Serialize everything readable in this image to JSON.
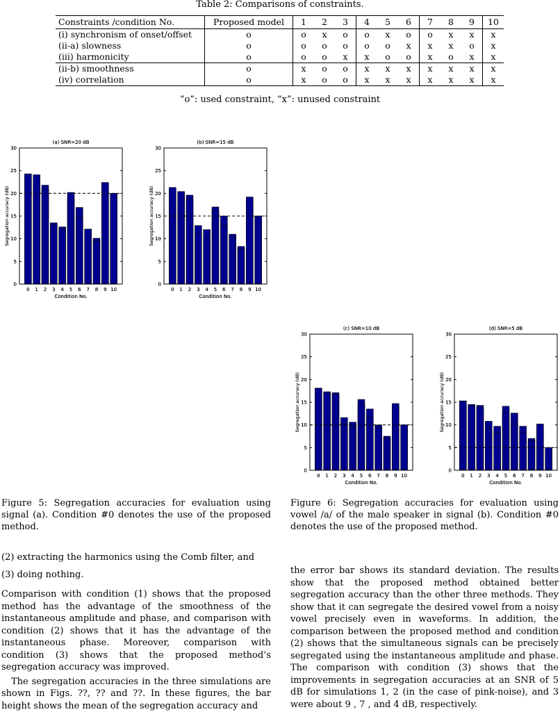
{
  "table": {
    "title": "Table 2: Comparisons of constraints.",
    "header_label": "Constraints /condition No.",
    "header_proposed": "Proposed model",
    "columns": [
      "1",
      "2",
      "3",
      "4",
      "5",
      "6",
      "7",
      "8",
      "9",
      "10"
    ],
    "rows": [
      {
        "label": "(i) synchronism of onset/offset",
        "proposed": "o",
        "cells": [
          "o",
          "x",
          "o",
          "o",
          "x",
          "o",
          "o",
          "x",
          "x",
          "x"
        ]
      },
      {
        "label": "(ii-a) slowness",
        "proposed": "o",
        "cells": [
          "o",
          "o",
          "o",
          "o",
          "o",
          "x",
          "x",
          "x",
          "o",
          "x"
        ]
      },
      {
        "label": "(iii) harmonicity",
        "proposed": "o",
        "cells": [
          "o",
          "o",
          "x",
          "x",
          "o",
          "o",
          "x",
          "o",
          "x",
          "x"
        ]
      },
      {
        "label": "(ii-b) smoothness",
        "proposed": "o",
        "cells": [
          "x",
          "o",
          "o",
          "x",
          "x",
          "x",
          "x",
          "x",
          "x",
          "x"
        ]
      },
      {
        "label": "(iv) correlation",
        "proposed": "o",
        "cells": [
          "x",
          "o",
          "o",
          "x",
          "x",
          "x",
          "x",
          "x",
          "x",
          "x"
        ]
      }
    ],
    "legend": "“o”: used constraint, “x”: unused constraint"
  },
  "chart_data": [
    {
      "type": "bar",
      "title": "(a) SNR=20 dB",
      "xlabel": "Condition No.",
      "ylabel": "Segregation accuracy (dB)",
      "ylim": [
        0,
        30
      ],
      "categories": [
        "0",
        "1",
        "2",
        "3",
        "4",
        "5",
        "6",
        "7",
        "8",
        "9",
        "10"
      ],
      "values": [
        24.1,
        22.4,
        21.8,
        13.5,
        12.6,
        18.9,
        16.9,
        12.1,
        10.1,
        22.0,
        20.0
      ],
      "reference_line": 20
    },
    {
      "type": "bar",
      "title": "(b) SNR=15 dB",
      "xlabel": "Condition No.",
      "ylabel": "Segregation accuracy (dB)",
      "ylim": [
        0,
        30
      ],
      "categories": [
        "0",
        "1",
        "2",
        "3",
        "4",
        "5",
        "6",
        "7",
        "8",
        "9",
        "10"
      ],
      "values": [
        21.0,
        19.6,
        19.6,
        12.9,
        12.0,
        17.0,
        15.0,
        11.0,
        8.3,
        18.4,
        15.0
      ],
      "reference_line": 15
    },
    {
      "type": "bar",
      "title": "(a) SNR=20 dB",
      "xlabel": "Condition No.",
      "ylabel": "Segregation accuracy (dB)",
      "ylim": [
        0,
        30
      ],
      "categories": [
        "0",
        "1",
        "2",
        "3",
        "4",
        "5",
        "6",
        "7",
        "8",
        "9",
        "10"
      ],
      "values": [
        24.3,
        24.1,
        21.0,
        13.0,
        12.1,
        20.2,
        14.7,
        12.1,
        9.6,
        22.4,
        20.0
      ],
      "reference_line": 20
    },
    {
      "type": "bar",
      "title": "(b) SNR=15 dB",
      "xlabel": "Condition No.",
      "ylabel": "Segregation accuracy (dB)",
      "ylim": [
        0,
        30
      ],
      "categories": [
        "0",
        "1",
        "2",
        "3",
        "4",
        "5",
        "6",
        "7",
        "8",
        "9",
        "10"
      ],
      "values": [
        21.3,
        20.4,
        18.7,
        11.1,
        10.3,
        16.2,
        13.0,
        10.3,
        7.7,
        19.2,
        15.0
      ],
      "reference_line": 15
    },
    {
      "type": "bar",
      "title": "(c) SNR=10 dB",
      "xlabel": "Condition No.",
      "ylabel": "Segregation accuracy (dB)",
      "ylim": [
        0,
        30
      ],
      "categories": [
        "0",
        "1",
        "2",
        "3",
        "4",
        "5",
        "6",
        "7",
        "8",
        "9",
        "10"
      ],
      "values": [
        18.1,
        17.3,
        17.1,
        11.6,
        10.6,
        15.6,
        13.5,
        10.0,
        7.5,
        14.0,
        10.0
      ],
      "reference_line": 10
    },
    {
      "type": "bar",
      "title": "(d) SNR=5 dB",
      "xlabel": "Condition No.",
      "ylabel": "Segregation accuracy (dB)",
      "ylim": [
        0,
        30
      ],
      "categories": [
        "0",
        "1",
        "2",
        "3",
        "4",
        "5",
        "6",
        "7",
        "8",
        "9",
        "10"
      ],
      "values": [
        15.2,
        14.5,
        14.3,
        10.8,
        9.7,
        14.1,
        12.6,
        9.7,
        7.0,
        9.0,
        5.0
      ],
      "reference_line": 5
    },
    {
      "type": "bar",
      "title": "(c) SNR=10 dB",
      "xlabel": "Condition No.",
      "ylabel": "Segregation accuracy (dB)",
      "ylim": [
        0,
        30
      ],
      "categories": [
        "0",
        "1",
        "2",
        "3",
        "4",
        "5",
        "6",
        "7",
        "8",
        "9",
        "10"
      ],
      "values": [
        18.1,
        17.0,
        16.7,
        10.2,
        9.4,
        14.6,
        11.7,
        9.4,
        7.0,
        14.7,
        10.0
      ],
      "reference_line": 10
    },
    {
      "type": "bar",
      "title": "(d) SNR=5 dB",
      "xlabel": "Condition No.",
      "ylabel": "Segregation accuracy (dB)",
      "ylim": [
        0,
        30
      ],
      "categories": [
        "0",
        "1",
        "2",
        "3",
        "4",
        "5",
        "6",
        "7",
        "8",
        "9",
        "10"
      ],
      "values": [
        15.3,
        14.1,
        13.8,
        9.1,
        8.3,
        12.6,
        10.2,
        8.3,
        6.5,
        10.2,
        5.0
      ],
      "reference_line": 5
    }
  ],
  "colors": {
    "bar": "#00008f",
    "bar_edge": "#000000"
  },
  "figures": {
    "fig5_caption": "Figure 5: Segregation accuracies for evaluation using signal (a). Condition #0 denotes the use of the proposed method.",
    "fig6_caption": "Figure 6: Segregation accuracies for evaluation using vowel /a/ of the male speaker in signal (b). Condition #0 denotes the use of the proposed method."
  },
  "left_column": {
    "item2": "(2)  extracting the harmonics using the Comb filter, and",
    "item3": "(3)  doing nothing.",
    "para1": "Comparison with condition (1) shows that the proposed method has the advantage of the smoothness of the instantaneous amplitude and phase, and comparison with condition (2) shows that it has the advantage of the instantaneous phase.  Moreover, comparison with condition (3) shows that the proposed method’s segregation accuracy was improved.",
    "para2": "The segregation accuracies in the three simulations are shown in Figs. ??, ?? and ??. In these figures, the bar height shows the mean of the segregation accuracy and"
  },
  "right_column": {
    "para": "the error bar shows its standard deviation.  The results show that the proposed method obtained better segregation accuracy than the other three methods. They show that it can segregate the desired vowel from a noisy vowel precisely even in waveforms. In addition, the comparison between the proposed method and condition (2) shows that the simultaneous signals can be precisely segregated using the instantaneous amplitude and phase. The comparison with condition (3) shows that the improvements in segregation accuracies at an SNR of 5 dB for simulations 1, 2 (in the case of pink-noise), and 3 were about 9 , 7 , and 4 dB, respectively."
  }
}
